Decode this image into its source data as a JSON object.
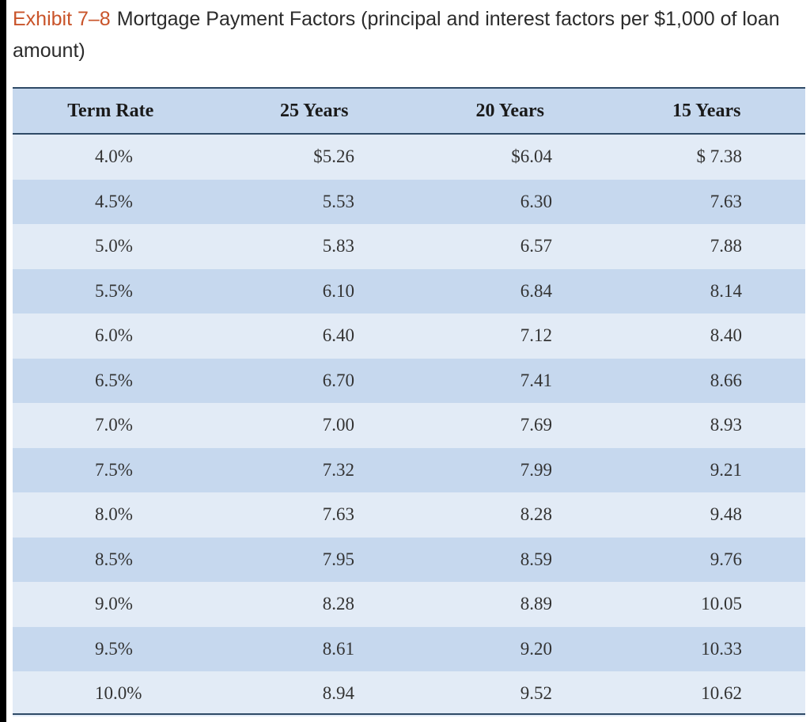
{
  "caption": {
    "exhibit": "Exhibit 7–8",
    "title": "Mortgage Payment Factors (principal and interest factors per $1,000 of loan amount)"
  },
  "table": {
    "headers": [
      "Term Rate",
      "25 Years",
      "20 Years",
      "15 Years"
    ],
    "rows": [
      [
        "4.0%",
        "$5.26",
        "$6.04",
        "$ 7.38"
      ],
      [
        "4.5%",
        "5.53",
        "6.30",
        "7.63"
      ],
      [
        "5.0%",
        "5.83",
        "6.57",
        "7.88"
      ],
      [
        "5.5%",
        "6.10",
        "6.84",
        "8.14"
      ],
      [
        "6.0%",
        "6.40",
        "7.12",
        "8.40"
      ],
      [
        "6.5%",
        "6.70",
        "7.41",
        "8.66"
      ],
      [
        "7.0%",
        "7.00",
        "7.69",
        "8.93"
      ],
      [
        "7.5%",
        "7.32",
        "7.99",
        "9.21"
      ],
      [
        "8.0%",
        "7.63",
        "8.28",
        "9.48"
      ],
      [
        "8.5%",
        "7.95",
        "8.59",
        "9.76"
      ],
      [
        "9.0%",
        "8.28",
        "8.89",
        "10.05"
      ],
      [
        "9.5%",
        "8.61",
        "9.20",
        "10.33"
      ],
      [
        "10.0%",
        "8.94",
        "9.52",
        "10.62"
      ]
    ]
  },
  "colors": {
    "exhibit_accent": "#c9542a",
    "header_bg": "#c6d8ee",
    "row_light": "#e2ebf6",
    "row_dark": "#c6d8ee",
    "rule": "#2f4a66"
  }
}
